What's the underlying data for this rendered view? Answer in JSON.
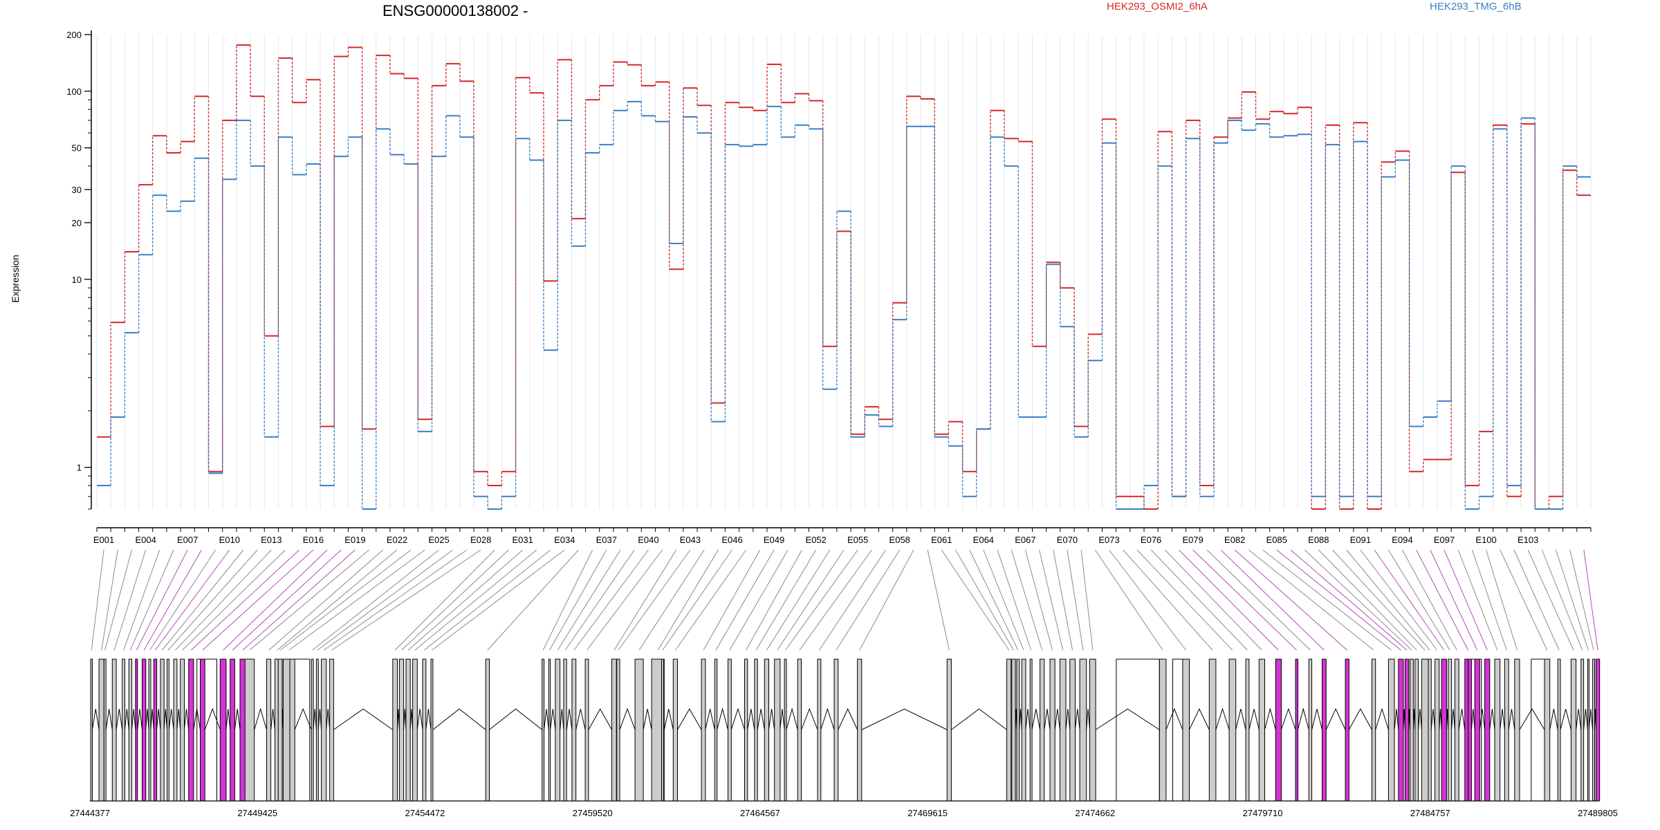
{
  "chart_data": {
    "type": "line",
    "title": "ENSG00000138002 -",
    "ylabel": "Expression",
    "y_scale": "log",
    "y_ticks": [
      "200",
      "100",
      "50",
      "30",
      "20",
      "10",
      "1"
    ],
    "exon_labels_shown": [
      "E001",
      "E004",
      "E007",
      "E010",
      "E013",
      "E016",
      "E019",
      "E022",
      "E025",
      "E028",
      "E031",
      "E034",
      "E037",
      "E040",
      "E043",
      "E046",
      "E049",
      "E052",
      "E055",
      "E058",
      "E061",
      "E064",
      "E067",
      "E070",
      "E073",
      "E076",
      "E079",
      "E082",
      "E085",
      "E088",
      "E091",
      "E094",
      "E097",
      "E100",
      "E103"
    ],
    "genomic_ticks": [
      "27444377",
      "27449425",
      "27454472",
      "27459520",
      "27464567",
      "27469615",
      "27474662",
      "27479710",
      "27484757",
      "27489805"
    ],
    "genomic_range": [
      27444377,
      27489805
    ],
    "series": [
      {
        "name": "HEK293_OSMI2_6hA",
        "color": "#d62728",
        "values": [
          1.45,
          5.9,
          14.0,
          31.8,
          58.0,
          47.0,
          54.0,
          94.0,
          0.95,
          70.0,
          176.0,
          94.0,
          5.0,
          150.0,
          87.0,
          115.0,
          1.65,
          153.0,
          171.0,
          1.6,
          155.0,
          124.0,
          117.0,
          1.8,
          107.0,
          140.0,
          113.0,
          0.95,
          0.8,
          0.95,
          118.0,
          98.0,
          9.8,
          147.0,
          21.0,
          90.0,
          107.0,
          143.0,
          138.0,
          107.0,
          112.0,
          11.3,
          104.0,
          84.0,
          2.2,
          87.0,
          82.0,
          79.0,
          139.0,
          87.0,
          97.0,
          89.0,
          4.4,
          18.0,
          1.5,
          2.1,
          1.8,
          7.5,
          94.0,
          91.0,
          1.5,
          1.75,
          0.95,
          1.6,
          79.0,
          56.0,
          54.0,
          4.4,
          12.3,
          9.0,
          1.65,
          5.1,
          71.0,
          0.7,
          0.7,
          0.6,
          61.0,
          0.7,
          70.0,
          0.8,
          57.0,
          72.0,
          99.0,
          71.0,
          78.0,
          76.0,
          82.0,
          0.6,
          66.0,
          0.6,
          68.0,
          0.6,
          42.0,
          48.0,
          0.95,
          1.1,
          1.1,
          37.0,
          0.8,
          1.55,
          66.0,
          0.7,
          67.0,
          0.6,
          0.7,
          38.0,
          28.0
        ]
      },
      {
        "name": "HEK293_TMG_6hB",
        "color": "#3a7fc4",
        "values": [
          0.8,
          1.85,
          5.2,
          13.5,
          28.0,
          23.0,
          26.0,
          44.0,
          0.93,
          34.0,
          70.0,
          40.0,
          1.45,
          57.0,
          36.0,
          41.0,
          0.8,
          45.0,
          57.0,
          0.6,
          63.0,
          46.0,
          41.0,
          1.55,
          45.0,
          74.0,
          57.0,
          0.7,
          0.6,
          0.7,
          56.0,
          43.0,
          4.2,
          70.0,
          15.0,
          47.0,
          52.0,
          79.0,
          88.0,
          74.0,
          69.0,
          15.5,
          73.0,
          60.0,
          1.75,
          52.0,
          51.0,
          52.0,
          83.0,
          57.0,
          66.0,
          63.0,
          2.6,
          23.0,
          1.45,
          1.9,
          1.65,
          6.1,
          65.0,
          65.0,
          1.45,
          1.3,
          0.7,
          1.6,
          57.0,
          40.0,
          1.85,
          1.85,
          12.0,
          5.6,
          1.45,
          3.7,
          53.0,
          0.6,
          0.6,
          0.8,
          40.0,
          0.7,
          56.0,
          0.7,
          53.0,
          70.0,
          62.0,
          67.0,
          57.0,
          58.0,
          59.0,
          0.7,
          52.0,
          0.7,
          54.0,
          0.7,
          35.0,
          43.0,
          1.65,
          1.85,
          2.25,
          40.0,
          0.6,
          0.7,
          63.0,
          0.8,
          72.0,
          0.6,
          0.6,
          40.0,
          35.0
        ]
      }
    ],
    "exon_types": [
      "c",
      "c",
      "c",
      "c",
      "c",
      "c",
      "m",
      "m",
      "c",
      "m",
      "c",
      "c",
      "c",
      "c",
      "m",
      "m",
      "m",
      "m",
      "m",
      "c",
      "c",
      "c",
      "c",
      "c",
      "c",
      "c",
      "c",
      "c",
      "c",
      "c",
      "c",
      "c",
      "c",
      "c",
      "c",
      "c",
      "c",
      "c",
      "c",
      "c",
      "c",
      "c",
      "c",
      "c",
      "c",
      "c",
      "c",
      "c",
      "c",
      "c",
      "c",
      "c",
      "c",
      "c",
      "c",
      "c",
      "c",
      "c",
      "c",
      "c",
      "c",
      "c",
      "c",
      "c",
      "c",
      "c",
      "c",
      "c",
      "c",
      "c",
      "c",
      "c",
      "c",
      "c",
      "c",
      "c",
      "c",
      "m",
      "m",
      "c",
      "m",
      "m",
      "c",
      "c",
      "m",
      "m",
      "c",
      "c",
      "c",
      "c",
      "c",
      "m",
      "c",
      "c",
      "m",
      "m",
      "m",
      "c",
      "c",
      "c",
      "c",
      "c",
      "c",
      "c",
      "c",
      "c",
      "m"
    ],
    "exon_positions": [
      27444400,
      27444650,
      27444800,
      27445050,
      27445350,
      27445550,
      27445750,
      27445950,
      27446150,
      27446300,
      27446500,
      27446700,
      27446900,
      27447100,
      27447350,
      27447700,
      27448300,
      27448600,
      27448900,
      27449050,
      27449700,
      27449950,
      27450050,
      27450200,
      27451050,
      27451200,
      27451350,
      27451600,
      27453500,
      27453700,
      27453900,
      27454100,
      27454400,
      27454650,
      27456300,
      27458000,
      27458200,
      27458400,
      27458650,
      27458900,
      27459300,
      27460100,
      27460250,
      27460800,
      27461300,
      27461600,
      27461950,
      27462800,
      27463200,
      27463600,
      27464100,
      27464400,
      27464700,
      27465000,
      27465300,
      27465700,
      27466300,
      27466800,
      27467500,
      27470200,
      27472000,
      27472150,
      27472300,
      27472450,
      27472700,
      27473000,
      27473300,
      27473600,
      27473900,
      27474200,
      27474500,
      27476600,
      27477300,
      27478100,
      27478700,
      27479200,
      27479600,
      27480100,
      27480700,
      27481100,
      27481500,
      27482200,
      27483000,
      27483500,
      27483800,
      27484000,
      27484150,
      27484300,
      27484500,
      27484700,
      27484900,
      27485100,
      27485300,
      27485500,
      27485800,
      27486100,
      27486400,
      27486700,
      27487000,
      27487300,
      27488200,
      27488600,
      27489000,
      27489300,
      27489500,
      27489650,
      27489750
    ],
    "exon_widths": [
      50,
      150,
      60,
      120,
      80,
      90,
      60,
      110,
      60,
      90,
      110,
      60,
      100,
      120,
      150,
      140,
      180,
      140,
      160,
      280,
      130,
      140,
      120,
      350,
      60,
      60,
      150,
      120,
      140,
      130,
      130,
      140,
      100,
      60,
      110,
      60,
      50,
      140,
      90,
      120,
      100,
      140,
      90,
      250,
      380,
      60,
      130,
      120,
      70,
      100,
      90,
      90,
      130,
      170,
      60,
      110,
      100,
      120,
      130,
      130,
      130,
      110,
      80,
      120,
      60,
      130,
      150,
      180,
      160,
      200,
      180,
      200,
      200,
      200,
      200,
      100,
      170,
      170,
      70,
      90,
      120,
      110,
      110,
      180,
      150,
      110,
      100,
      100,
      200,
      90,
      130,
      150,
      100,
      120,
      200,
      150,
      150,
      160,
      120,
      150,
      160,
      80,
      150,
      80,
      40,
      60,
      110
    ]
  },
  "legend": [
    {
      "label": "HEK293_OSMI2_6hA",
      "color": "#d62728"
    },
    {
      "label": "HEK293_TMG_6hB",
      "color": "#3a7fc4"
    }
  ],
  "colors": {
    "exon_constitutive": "#cccccc",
    "exon_marked": "#d633d6",
    "connector_plain": "#8a8a8a",
    "connector_marked": "#b24bb8"
  }
}
